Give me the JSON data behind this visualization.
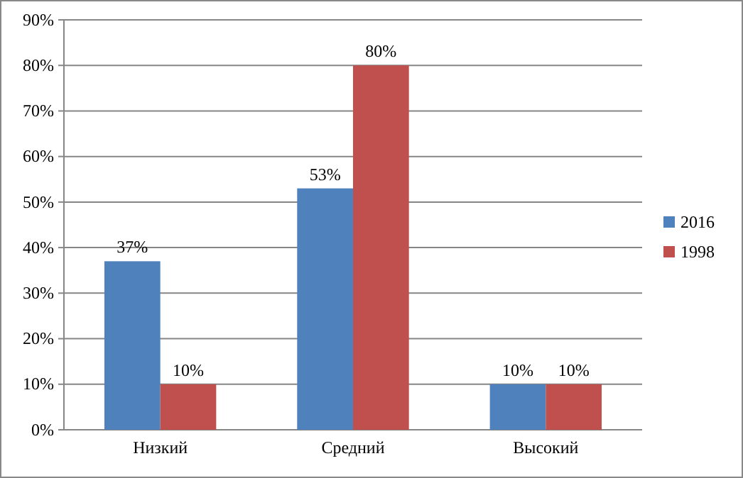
{
  "chart_data": {
    "type": "bar",
    "categories": [
      "Низкий",
      "Средний",
      "Высокий"
    ],
    "series": [
      {
        "name": "2016",
        "color": "#4f81bd",
        "values": [
          37,
          53,
          10
        ],
        "value_labels": [
          "37%",
          "53%",
          "10%"
        ]
      },
      {
        "name": "1998",
        "color": "#c0504d",
        "values": [
          10,
          80,
          10
        ],
        "value_labels": [
          "10%",
          "80%",
          "10%"
        ]
      }
    ],
    "ylim": [
      0,
      90
    ],
    "yticks": [
      {
        "value": 0,
        "label": "0%"
      },
      {
        "value": 10,
        "label": "10%"
      },
      {
        "value": 20,
        "label": "20%"
      },
      {
        "value": 30,
        "label": "30%"
      },
      {
        "value": 40,
        "label": "40%"
      },
      {
        "value": 50,
        "label": "50%"
      },
      {
        "value": 60,
        "label": "60%"
      },
      {
        "value": 70,
        "label": "70%"
      },
      {
        "value": 80,
        "label": "80%"
      },
      {
        "value": 90,
        "label": "90%"
      }
    ],
    "grid": "y",
    "legend": "right"
  }
}
